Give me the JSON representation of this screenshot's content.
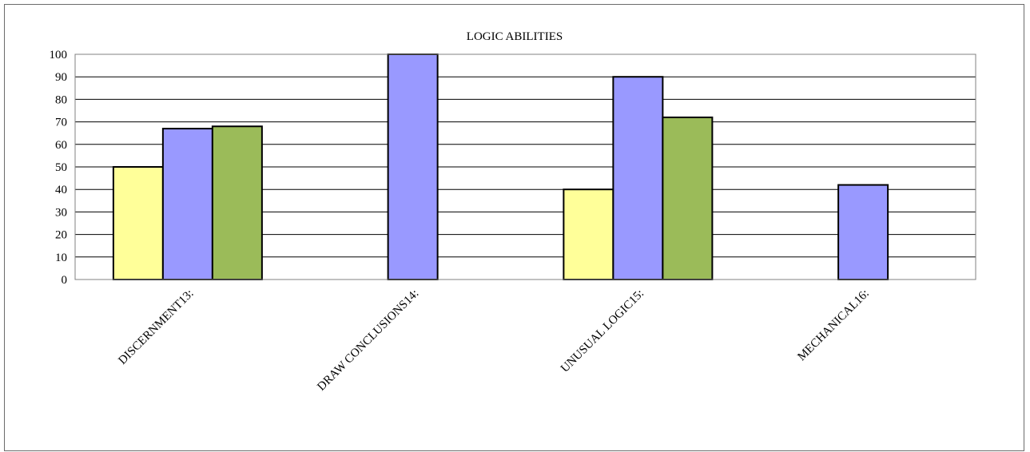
{
  "chart_data": {
    "type": "bar",
    "title": "LOGIC ABILITIES",
    "xlabel": "",
    "ylabel": "",
    "categories": [
      "DISCERNMENT13:",
      "DRAW CONCLUSIONS14:",
      "UNUSUAL LOGIC15:",
      "MECHANICAL16:"
    ],
    "series": [
      {
        "values": [
          50,
          null,
          40,
          null
        ],
        "color": "#ffff99"
      },
      {
        "values": [
          67,
          100,
          90,
          42
        ],
        "color": "#9999ff"
      },
      {
        "values": [
          68,
          null,
          72,
          null
        ],
        "color": "#9bbb59"
      }
    ],
    "ylim": [
      0,
      100
    ],
    "yticks": [
      0,
      10,
      20,
      30,
      40,
      50,
      60,
      70,
      80,
      90,
      100
    ],
    "grid": true,
    "legend": "none"
  }
}
